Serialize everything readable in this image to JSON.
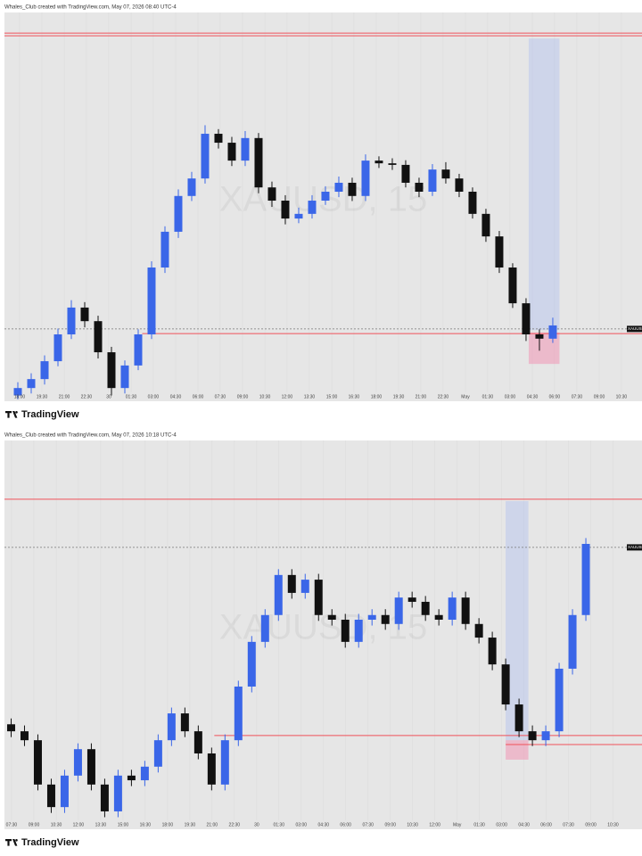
{
  "chart_data": [
    {
      "type": "candlestick",
      "header": "Whales_Club created with TradingView.com, May 07, 2026 08:40 UTC-4",
      "watermark": "XAUUSD, 15",
      "brand": "TradingView",
      "price_tag": "XAUUSD",
      "up_color": "#3a66e8",
      "down_color": "#111111",
      "level_color": "#f0525a",
      "grid": true,
      "xlim": [
        -1,
        46.67
      ],
      "ylim": [
        0,
        100
      ],
      "xticks": [
        {
          "value": 0.13,
          "label": "18:00"
        },
        {
          "value": 1.8,
          "label": "19:30"
        },
        {
          "value": 3.47,
          "label": "21:00"
        },
        {
          "value": 5.13,
          "label": "22:30"
        },
        {
          "value": 6.8,
          "label": "30"
        },
        {
          "value": 8.47,
          "label": "01:30"
        },
        {
          "value": 10.13,
          "label": "03:00"
        },
        {
          "value": 11.8,
          "label": "04:30"
        },
        {
          "value": 13.47,
          "label": "06:00"
        },
        {
          "value": 15.13,
          "label": "07:30"
        },
        {
          "value": 16.8,
          "label": "09:00"
        },
        {
          "value": 18.47,
          "label": "10:30"
        },
        {
          "value": 20.13,
          "label": "12:00"
        },
        {
          "value": 21.8,
          "label": "13:30"
        },
        {
          "value": 23.47,
          "label": "15:00"
        },
        {
          "value": 25.13,
          "label": "16:30"
        },
        {
          "value": 26.8,
          "label": "18:00"
        },
        {
          "value": 28.47,
          "label": "19:30"
        },
        {
          "value": 30.13,
          "label": "21:00"
        },
        {
          "value": 31.8,
          "label": "22:30"
        },
        {
          "value": 33.47,
          "label": "May"
        },
        {
          "value": 35.13,
          "label": "01:30"
        },
        {
          "value": 36.8,
          "label": "03:00"
        },
        {
          "value": 38.47,
          "label": "04:30"
        },
        {
          "value": 40.13,
          "label": "06:00"
        },
        {
          "value": 41.8,
          "label": "07:30"
        },
        {
          "value": 43.47,
          "label": "09:00"
        },
        {
          "value": 45.13,
          "label": "10:30"
        }
      ],
      "open": [
        1.5,
        3.4,
        5.7,
        10.3,
        17.2,
        24.1,
        20.6,
        12.6,
        3.4,
        9.2,
        17.2,
        34.4,
        43.6,
        52.8,
        57.3,
        68.8,
        66.5,
        61.9,
        67.7,
        55.0,
        51.6,
        47.0,
        48.2,
        51.6,
        53.9,
        56.2,
        52.8,
        61.9,
        61.2,
        60.8,
        56.2,
        53.9,
        59.6,
        57.3,
        53.9,
        48.2,
        42.4,
        34.4,
        25.2,
        17.2,
        16.1
      ],
      "high": [
        4.9,
        7.2,
        11.8,
        18.7,
        26,
        25.5,
        22,
        14,
        10.5,
        18.5,
        36,
        45,
        54.5,
        59,
        71,
        70,
        68,
        69.5,
        69,
        56.5,
        53,
        49.8,
        53,
        55.3,
        57.8,
        57.5,
        63.5,
        63,
        62.5,
        62,
        57.5,
        61,
        61.5,
        58.5,
        55,
        49.5,
        43.8,
        35.5,
        26.5,
        18.5,
        21.5
      ],
      "low": [
        0.5,
        2,
        4.3,
        9,
        16,
        19,
        11,
        1.5,
        2,
        8,
        16,
        33,
        42,
        51.5,
        56,
        65,
        60.5,
        60.5,
        53.5,
        50,
        45.5,
        45.8,
        47,
        50.5,
        52.5,
        51.5,
        51.5,
        60,
        59.5,
        55,
        52.5,
        52.8,
        56,
        52.5,
        47,
        41,
        33,
        24,
        15.5,
        13,
        15
      ],
      "close": [
        3.4,
        5.7,
        10.3,
        17.2,
        24.1,
        20.6,
        12.6,
        3.4,
        9.2,
        17.2,
        34.4,
        43.6,
        52.8,
        57.3,
        68.8,
        66.5,
        61.9,
        67.7,
        55.0,
        51.6,
        47.0,
        48.2,
        51.6,
        53.9,
        56.2,
        52.8,
        61.9,
        61.2,
        60.8,
        56.2,
        53.9,
        59.6,
        57.3,
        53.9,
        48.2,
        42.4,
        34.4,
        25.2,
        17.2,
        16.1,
        19.5
      ],
      "levels": [
        {
          "value": 94.7,
          "start": -1
        },
        {
          "value": 94.0,
          "start": -1
        },
        {
          "value": 17.4,
          "start": 9.3
        }
      ],
      "price_line": 18.6,
      "zones": [
        {
          "x": [
            38.2,
            40.5
          ],
          "y": [
            18.3,
            93.3
          ],
          "color": "rgba(160,180,240,0.35)"
        },
        {
          "x": [
            38.2,
            40.5
          ],
          "y": [
            9.6,
            17.7
          ],
          "color": "rgba(240,150,180,0.55)"
        }
      ]
    },
    {
      "type": "candlestick",
      "header": "Whales_Club created with TradingView.com, May 07, 2026 10:18 UTC-4",
      "watermark": "XAUUSD, 15",
      "brand": "TradingView",
      "price_tag": "XAUUSD",
      "up_color": "#3a66e8",
      "down_color": "#111111",
      "level_color": "#f0525a",
      "grid": true,
      "xlim": [
        -0.5,
        47.2
      ],
      "ylim": [
        0,
        100
      ],
      "xticks": [
        {
          "value": 0.03,
          "label": "07:30"
        },
        {
          "value": 1.7,
          "label": "09:00"
        },
        {
          "value": 3.37,
          "label": "10:30"
        },
        {
          "value": 5.03,
          "label": "12:00"
        },
        {
          "value": 6.7,
          "label": "13:30"
        },
        {
          "value": 8.37,
          "label": "15:00"
        },
        {
          "value": 10.03,
          "label": "16:30"
        },
        {
          "value": 11.7,
          "label": "18:00"
        },
        {
          "value": 13.37,
          "label": "19:30"
        },
        {
          "value": 15.03,
          "label": "21:00"
        },
        {
          "value": 16.7,
          "label": "22:30"
        },
        {
          "value": 18.37,
          "label": "30"
        },
        {
          "value": 20.03,
          "label": "01:30"
        },
        {
          "value": 21.7,
          "label": "03:00"
        },
        {
          "value": 23.37,
          "label": "04:30"
        },
        {
          "value": 25.03,
          "label": "06:00"
        },
        {
          "value": 26.7,
          "label": "07:30"
        },
        {
          "value": 28.37,
          "label": "09:00"
        },
        {
          "value": 30.03,
          "label": "10:30"
        },
        {
          "value": 31.7,
          "label": "12:00"
        },
        {
          "value": 33.37,
          "label": "May"
        },
        {
          "value": 35.03,
          "label": "01:30"
        },
        {
          "value": 36.7,
          "label": "03:00"
        },
        {
          "value": 38.37,
          "label": "04:30"
        },
        {
          "value": 40.03,
          "label": "06:00"
        },
        {
          "value": 41.7,
          "label": "07:30"
        },
        {
          "value": 43.37,
          "label": "09:00"
        },
        {
          "value": 45.03,
          "label": "10:30"
        }
      ],
      "open": [
        27,
        25.2,
        22.9,
        11.5,
        5.7,
        13.8,
        20.6,
        11.5,
        4.6,
        13.8,
        12.6,
        16.1,
        22.9,
        29.8,
        25.2,
        19.5,
        11.5,
        22.9,
        36.7,
        48.2,
        55.1,
        65.4,
        60.8,
        64.2,
        55.1,
        53.9,
        48.2,
        53.9,
        55.1,
        52.8,
        59.6,
        58.5,
        55.1,
        53.9,
        59.6,
        52.8,
        49.3,
        42.4,
        32.1,
        25.2,
        22.9,
        25.2,
        41.3,
        55.1
      ],
      "high": [
        28.5,
        26.7,
        24.4,
        13,
        15.3,
        22.1,
        22.1,
        13,
        15.3,
        15.3,
        17.6,
        24.4,
        31.3,
        31.3,
        26.7,
        21,
        24.4,
        38.2,
        49.7,
        56.6,
        66.9,
        66.9,
        65.7,
        65.7,
        56.6,
        55.4,
        55.4,
        56.6,
        56.6,
        61.1,
        61.1,
        60,
        56.6,
        61.1,
        61.1,
        54.3,
        50.8,
        43.9,
        33.6,
        26.7,
        26.7,
        42.8,
        56.6,
        74.9
      ],
      "low": [
        23.7,
        21.4,
        10,
        4.2,
        4.2,
        12.3,
        10,
        3.1,
        3.1,
        11.1,
        11.1,
        14.6,
        21.4,
        23.7,
        18,
        10,
        10,
        21.4,
        35.2,
        46.7,
        53.6,
        59.3,
        59.3,
        53.6,
        52.4,
        46.7,
        46.7,
        52.4,
        51.3,
        51.3,
        57,
        53.6,
        52.4,
        52.4,
        51.3,
        47.8,
        40.9,
        30.6,
        23.7,
        21.4,
        21.4,
        23.7,
        39.8,
        53.6
      ],
      "close": [
        25.2,
        22.9,
        11.5,
        5.7,
        13.8,
        20.6,
        11.5,
        4.6,
        13.8,
        12.6,
        16.1,
        22.9,
        29.8,
        25.2,
        19.5,
        11.5,
        22.9,
        36.7,
        48.2,
        55.1,
        65.4,
        60.8,
        64.2,
        55.1,
        53.9,
        48.2,
        53.9,
        55.1,
        52.8,
        59.6,
        58.5,
        55.1,
        53.9,
        59.6,
        52.8,
        49.3,
        42.4,
        32.1,
        25.2,
        22.9,
        25.2,
        41.3,
        55.1,
        73.4
      ],
      "levels": [
        {
          "value": 84.9,
          "start": -0.5
        },
        {
          "value": 24.1,
          "start": 15.2
        },
        {
          "value": 21.8,
          "start": 37
        }
      ],
      "price_line": 72.5,
      "zones": [
        {
          "x": [
            37,
            38.7
          ],
          "y": [
            22.9,
            84.4
          ],
          "color": "rgba(160,180,240,0.35)"
        },
        {
          "x": [
            37,
            38.7
          ],
          "y": [
            17.9,
            22.9
          ],
          "color": "rgba(240,150,180,0.55)"
        }
      ]
    }
  ]
}
